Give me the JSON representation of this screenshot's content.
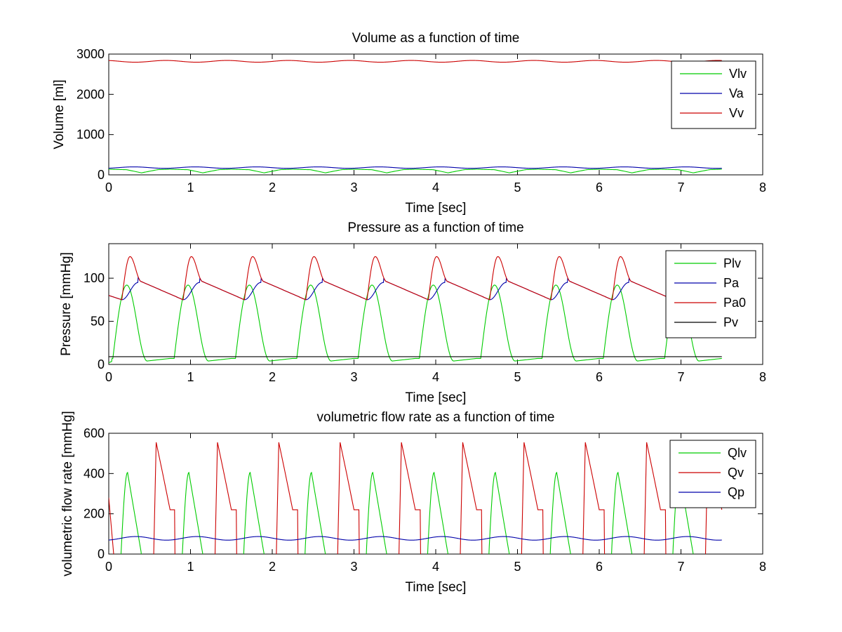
{
  "chart_data": [
    {
      "type": "line",
      "title": "Volume as a function of time",
      "xlabel": "Time [sec]",
      "ylabel": "Volume [ml]",
      "xlim": [
        0,
        8
      ],
      "ylim": [
        0,
        3000
      ],
      "xticks": [
        0,
        1,
        2,
        3,
        4,
        5,
        6,
        7,
        8
      ],
      "yticks": [
        0,
        1000,
        2000,
        3000
      ],
      "grid": false,
      "legend_position": "top-right",
      "series": [
        {
          "name": "Vlv",
          "color": "#00cc00",
          "model": "volume_lv"
        },
        {
          "name": "Va",
          "color": "#0000aa",
          "model": "volume_a"
        },
        {
          "name": "Vv",
          "color": "#cc0000",
          "model": "volume_v"
        }
      ]
    },
    {
      "type": "line",
      "title": "Pressure as a function of time",
      "xlabel": "Time [sec]",
      "ylabel": "Pressure [mmHg]",
      "xlim": [
        0,
        8
      ],
      "ylim": [
        0,
        140
      ],
      "xticks": [
        0,
        1,
        2,
        3,
        4,
        5,
        6,
        7,
        8
      ],
      "yticks": [
        0,
        50,
        100
      ],
      "grid": false,
      "legend_position": "top-right",
      "series": [
        {
          "name": "Plv",
          "color": "#00cc00",
          "model": "pressure_lv"
        },
        {
          "name": "Pa",
          "color": "#0000aa",
          "model": "pressure_a"
        },
        {
          "name": "Pa0",
          "color": "#cc0000",
          "model": "pressure_a0"
        },
        {
          "name": "Pv",
          "color": "#000000",
          "model": "pressure_v"
        }
      ]
    },
    {
      "type": "line",
      "title": "volumetric flow rate as a function of time",
      "xlabel": "Time [sec]",
      "ylabel": "volumetric flow rate [mmHg]",
      "xlim": [
        0,
        8
      ],
      "ylim": [
        0,
        600
      ],
      "xticks": [
        0,
        1,
        2,
        3,
        4,
        5,
        6,
        7,
        8
      ],
      "yticks": [
        0,
        200,
        400,
        600
      ],
      "grid": false,
      "legend_position": "top-right",
      "series": [
        {
          "name": "Qlv",
          "color": "#00cc00",
          "model": "flow_lv"
        },
        {
          "name": "Qv",
          "color": "#cc0000",
          "model": "flow_v"
        },
        {
          "name": "Qp",
          "color": "#0000aa",
          "model": "flow_p"
        }
      ]
    }
  ],
  "simulation": {
    "period": 0.75,
    "t_end": 7.5,
    "sample_step": 0.005
  }
}
